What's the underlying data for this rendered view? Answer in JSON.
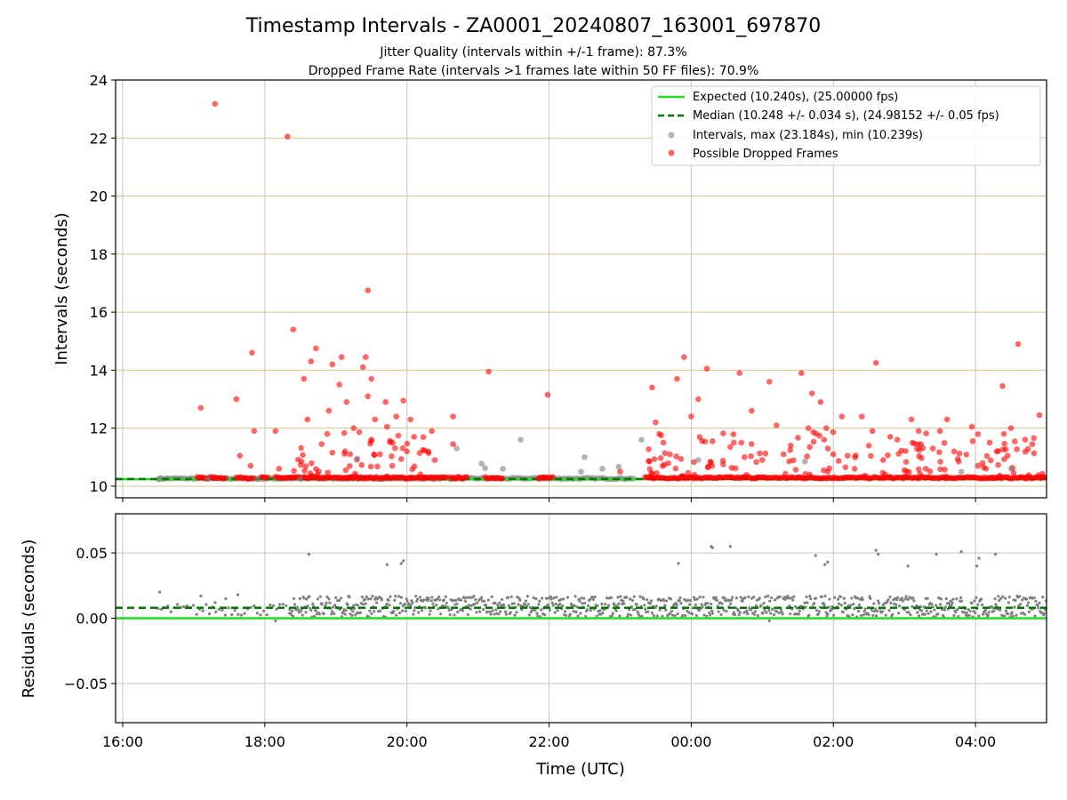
{
  "chart_data": [
    {
      "type": "scatter",
      "title": "Timestamp Intervals - ZA0001_20240807_163001_697870",
      "subtitle_1": "Jitter Quality (intervals within +/-1 frame): 87.3%",
      "subtitle_2": "Dropped Frame Rate (intervals >1 frames late within 50 FF files): 70.9%",
      "ylabel": "Intervals (seconds)",
      "xlim_hours": [
        15.9,
        29.0
      ],
      "ylim": [
        9.6,
        24
      ],
      "yticks": [
        10,
        12,
        14,
        16,
        18,
        20,
        22,
        24
      ],
      "grid": true,
      "legend_position": "top-right",
      "expected_interval": 10.24,
      "median_interval": 10.248,
      "series": [
        {
          "name": "Expected (10.240s), (25.00000 fps)",
          "kind": "line",
          "color": "#22dd22",
          "value": 10.24
        },
        {
          "name": "Median (10.248 +/- 0.034 s), (24.98152 +/- 0.05 fps)",
          "kind": "dashed-line",
          "color": "#007700",
          "value": 10.248
        },
        {
          "name": "Intervals, max (23.184s), min (10.239s)",
          "kind": "points",
          "color": "#808080",
          "points": [
            [
              16.52,
              10.24
            ],
            [
              17.2,
              10.25
            ],
            [
              17.9,
              10.25
            ],
            [
              18.5,
              10.25
            ],
            [
              19.3,
              10.95
            ],
            [
              20.7,
              11.3
            ],
            [
              21.05,
              10.78
            ],
            [
              21.1,
              10.62
            ],
            [
              21.35,
              10.6
            ],
            [
              21.6,
              11.6
            ],
            [
              22.45,
              10.5
            ],
            [
              22.5,
              11.0
            ],
            [
              22.75,
              10.6
            ],
            [
              22.98,
              10.67
            ],
            [
              23.3,
              11.6
            ],
            [
              24.1,
              10.9
            ],
            [
              25.6,
              10.85
            ],
            [
              27.8,
              10.5
            ],
            [
              28.5,
              10.6
            ]
          ]
        },
        {
          "name": "Possible Dropped Frames",
          "kind": "points",
          "color": "#ff0000",
          "points": [
            [
              17.3,
              23.18
            ],
            [
              18.32,
              22.05
            ],
            [
              19.45,
              16.75
            ],
            [
              17.1,
              12.7
            ],
            [
              17.6,
              13.0
            ],
            [
              17.82,
              14.6
            ],
            [
              17.85,
              11.9
            ],
            [
              17.65,
              11.05
            ],
            [
              17.8,
              10.7
            ],
            [
              18.2,
              10.6
            ],
            [
              18.15,
              11.9
            ],
            [
              18.4,
              15.4
            ],
            [
              18.55,
              13.7
            ],
            [
              18.6,
              12.3
            ],
            [
              18.65,
              14.3
            ],
            [
              18.72,
              14.75
            ],
            [
              18.8,
              11.45
            ],
            [
              18.9,
              12.6
            ],
            [
              18.95,
              14.2
            ],
            [
              19.05,
              13.5
            ],
            [
              19.08,
              14.45
            ],
            [
              19.15,
              12.9
            ],
            [
              19.2,
              11.1
            ],
            [
              19.25,
              12.0
            ],
            [
              19.38,
              14.1
            ],
            [
              19.42,
              14.45
            ],
            [
              19.45,
              13.1
            ],
            [
              19.5,
              13.7
            ],
            [
              19.55,
              12.3
            ],
            [
              19.62,
              11.1
            ],
            [
              19.7,
              12.9
            ],
            [
              19.72,
              12.05
            ],
            [
              19.8,
              11.5
            ],
            [
              19.85,
              12.4
            ],
            [
              19.95,
              12.95
            ],
            [
              20.0,
              11.2
            ],
            [
              20.05,
              12.3
            ],
            [
              20.1,
              11.7
            ],
            [
              20.3,
              11.2
            ],
            [
              20.35,
              11.9
            ],
            [
              20.65,
              12.4
            ],
            [
              20.65,
              11.45
            ],
            [
              21.15,
              13.95
            ],
            [
              21.98,
              13.15
            ],
            [
              23.0,
              10.5
            ],
            [
              23.45,
              13.4
            ],
            [
              23.5,
              12.2
            ],
            [
              23.55,
              11.8
            ],
            [
              23.7,
              11.1
            ],
            [
              23.8,
              13.7
            ],
            [
              23.9,
              14.45
            ],
            [
              24.0,
              12.4
            ],
            [
              24.1,
              13.0
            ],
            [
              24.3,
              11.55
            ],
            [
              24.45,
              10.75
            ],
            [
              24.55,
              11.35
            ],
            [
              24.6,
              11.5
            ],
            [
              24.75,
              11.0
            ],
            [
              24.85,
              11.45
            ],
            [
              25.0,
              10.9
            ],
            [
              24.22,
              14.05
            ],
            [
              24.68,
              13.9
            ],
            [
              24.85,
              12.6
            ],
            [
              25.1,
              13.6
            ],
            [
              25.2,
              12.1
            ],
            [
              25.3,
              11.1
            ],
            [
              25.4,
              11.4
            ],
            [
              25.55,
              13.9
            ],
            [
              25.65,
              12.0
            ],
            [
              25.7,
              13.2
            ],
            [
              25.82,
              12.9
            ],
            [
              25.87,
              11.6
            ],
            [
              25.9,
              12.0
            ],
            [
              26.0,
              11.1
            ],
            [
              26.12,
              12.4
            ],
            [
              26.2,
              11.05
            ],
            [
              26.3,
              10.6
            ],
            [
              26.4,
              12.4
            ],
            [
              26.5,
              11.4
            ],
            [
              26.55,
              11.9
            ],
            [
              26.6,
              14.25
            ],
            [
              26.7,
              10.9
            ],
            [
              26.8,
              11.7
            ],
            [
              26.9,
              11.6
            ],
            [
              27.0,
              10.55
            ],
            [
              27.1,
              12.3
            ],
            [
              27.2,
              11.9
            ],
            [
              27.3,
              10.6
            ],
            [
              27.4,
              11.3
            ],
            [
              27.5,
              11.9
            ],
            [
              27.6,
              12.3
            ],
            [
              27.7,
              11.2
            ],
            [
              27.95,
              12.05
            ],
            [
              28.1,
              10.8
            ],
            [
              28.2,
              11.5
            ],
            [
              28.3,
              11.2
            ],
            [
              28.38,
              13.45
            ],
            [
              28.4,
              11.8
            ],
            [
              28.5,
              12.0
            ],
            [
              28.6,
              14.9
            ],
            [
              28.7,
              11.6
            ],
            [
              28.8,
              11.45
            ],
            [
              28.9,
              12.45
            ],
            [
              29.05,
              12.2
            ],
            [
              29.12,
              13.75
            ],
            [
              29.2,
              13.7
            ],
            [
              29.3,
              12.3
            ],
            [
              29.4,
              12.6
            ],
            [
              29.45,
              10.95
            ],
            [
              29.5,
              11.6
            ],
            [
              29.55,
              11.3
            ],
            [
              29.6,
              12.0
            ],
            [
              29.7,
              10.75
            ],
            [
              29.8,
              11.5
            ],
            [
              29.9,
              12.3
            ],
            [
              30.0,
              10.7
            ]
          ]
        }
      ]
    },
    {
      "type": "scatter",
      "xlabel": "Time (UTC)",
      "ylabel": "Residuals (seconds)",
      "xticks": [
        "16:00",
        "18:00",
        "20:00",
        "22:00",
        "00:00",
        "02:00",
        "04:00"
      ],
      "xtick_hours": [
        16,
        18,
        20,
        22,
        24,
        26,
        28
      ],
      "xlim_hours": [
        15.9,
        29.0
      ],
      "ylim": [
        -0.08,
        0.08
      ],
      "yticks": [
        "−0.05",
        "0.00",
        "0.05"
      ],
      "ytick_values": [
        -0.05,
        0.0,
        0.05
      ],
      "grid": true,
      "expected_residual": 0.0,
      "median_residual": 0.008,
      "outliers": [
        [
          18.62,
          0.049
        ],
        [
          19.72,
          0.041
        ],
        [
          19.92,
          0.042
        ],
        [
          19.95,
          0.044
        ],
        [
          23.82,
          0.042
        ],
        [
          24.28,
          0.055
        ],
        [
          24.3,
          0.054
        ],
        [
          24.55,
          0.055
        ],
        [
          25.1,
          -0.002
        ],
        [
          25.75,
          0.048
        ],
        [
          25.88,
          0.041
        ],
        [
          25.92,
          0.043
        ],
        [
          26.6,
          0.052
        ],
        [
          26.63,
          0.049
        ],
        [
          27.05,
          0.04
        ],
        [
          27.45,
          0.049
        ],
        [
          27.8,
          0.051
        ],
        [
          28.05,
          0.046
        ],
        [
          28.02,
          0.04
        ],
        [
          28.28,
          0.049
        ],
        [
          18.15,
          -0.002
        ]
      ]
    }
  ]
}
